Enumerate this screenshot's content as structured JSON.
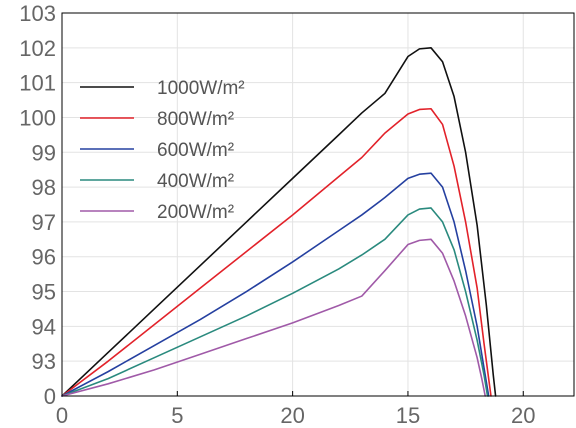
{
  "chart_data": {
    "type": "line",
    "title": "",
    "xlabel": "",
    "ylabel": "",
    "xlim": [
      0,
      22.2
    ],
    "x_ticks": [
      "0",
      "5",
      "20",
      "15",
      "20"
    ],
    "y_ticks": [
      "0",
      "93",
      "94",
      "95",
      "96",
      "97",
      "98",
      "99",
      "100",
      "101",
      "102",
      "103"
    ],
    "grid": true,
    "legend_position": "top-left",
    "series": [
      {
        "name": "1000W/m²",
        "color": "#111111",
        "points": [
          [
            0,
            0
          ],
          [
            2,
            1.25
          ],
          [
            4,
            2.5
          ],
          [
            6,
            3.75
          ],
          [
            8,
            5.0
          ],
          [
            10,
            6.25
          ],
          [
            12,
            7.5
          ],
          [
            13,
            8.13
          ],
          [
            14,
            8.69
          ],
          [
            15,
            9.75
          ],
          [
            15.5,
            9.97
          ],
          [
            16,
            10.0
          ],
          [
            16.5,
            9.6
          ],
          [
            17,
            8.6
          ],
          [
            17.5,
            7.0
          ],
          [
            18,
            4.9
          ],
          [
            18.4,
            2.6
          ],
          [
            18.7,
            0.6
          ],
          [
            18.8,
            0
          ]
        ]
      },
      {
        "name": "800W/m²",
        "color": "#e2222a",
        "points": [
          [
            0,
            0
          ],
          [
            2,
            1.0
          ],
          [
            4,
            2.05
          ],
          [
            6,
            3.1
          ],
          [
            8,
            4.15
          ],
          [
            10,
            5.2
          ],
          [
            12,
            6.3
          ],
          [
            13,
            6.85
          ],
          [
            14,
            7.55
          ],
          [
            15,
            8.1
          ],
          [
            15.5,
            8.23
          ],
          [
            16,
            8.25
          ],
          [
            16.5,
            7.8
          ],
          [
            17,
            6.6
          ],
          [
            17.5,
            5.0
          ],
          [
            18,
            3.1
          ],
          [
            18.3,
            1.5
          ],
          [
            18.6,
            0
          ]
        ]
      },
      {
        "name": "600W/m²",
        "color": "#2540a0",
        "points": [
          [
            0,
            0
          ],
          [
            2,
            0.7
          ],
          [
            4,
            1.45
          ],
          [
            6,
            2.2
          ],
          [
            8,
            3.0
          ],
          [
            10,
            3.85
          ],
          [
            12,
            4.75
          ],
          [
            13,
            5.2
          ],
          [
            14,
            5.7
          ],
          [
            15,
            6.25
          ],
          [
            15.5,
            6.37
          ],
          [
            16,
            6.4
          ],
          [
            16.5,
            6.0
          ],
          [
            17,
            5.0
          ],
          [
            17.5,
            3.6
          ],
          [
            18,
            2.0
          ],
          [
            18.3,
            0.8
          ],
          [
            18.5,
            0
          ]
        ]
      },
      {
        "name": "400W/m²",
        "color": "#2a8a7e",
        "points": [
          [
            0,
            0
          ],
          [
            2,
            0.5
          ],
          [
            4,
            1.1
          ],
          [
            6,
            1.7
          ],
          [
            8,
            2.3
          ],
          [
            10,
            2.95
          ],
          [
            12,
            3.65
          ],
          [
            13,
            4.05
          ],
          [
            14,
            4.5
          ],
          [
            15,
            5.2
          ],
          [
            15.5,
            5.37
          ],
          [
            16,
            5.4
          ],
          [
            16.5,
            5.0
          ],
          [
            17,
            4.2
          ],
          [
            17.5,
            3.0
          ],
          [
            18,
            1.6
          ],
          [
            18.3,
            0.6
          ],
          [
            18.45,
            0
          ]
        ]
      },
      {
        "name": "200W/m²",
        "color": "#a05aa8",
        "points": [
          [
            0,
            0
          ],
          [
            2,
            0.35
          ],
          [
            4,
            0.75
          ],
          [
            6,
            1.2
          ],
          [
            8,
            1.65
          ],
          [
            10,
            2.1
          ],
          [
            12,
            2.6
          ],
          [
            13,
            2.87
          ],
          [
            14,
            3.6
          ],
          [
            15,
            4.35
          ],
          [
            15.5,
            4.47
          ],
          [
            16,
            4.5
          ],
          [
            16.5,
            4.1
          ],
          [
            17,
            3.3
          ],
          [
            17.5,
            2.3
          ],
          [
            18,
            1.1
          ],
          [
            18.2,
            0.5
          ],
          [
            18.35,
            0
          ]
        ]
      }
    ]
  }
}
